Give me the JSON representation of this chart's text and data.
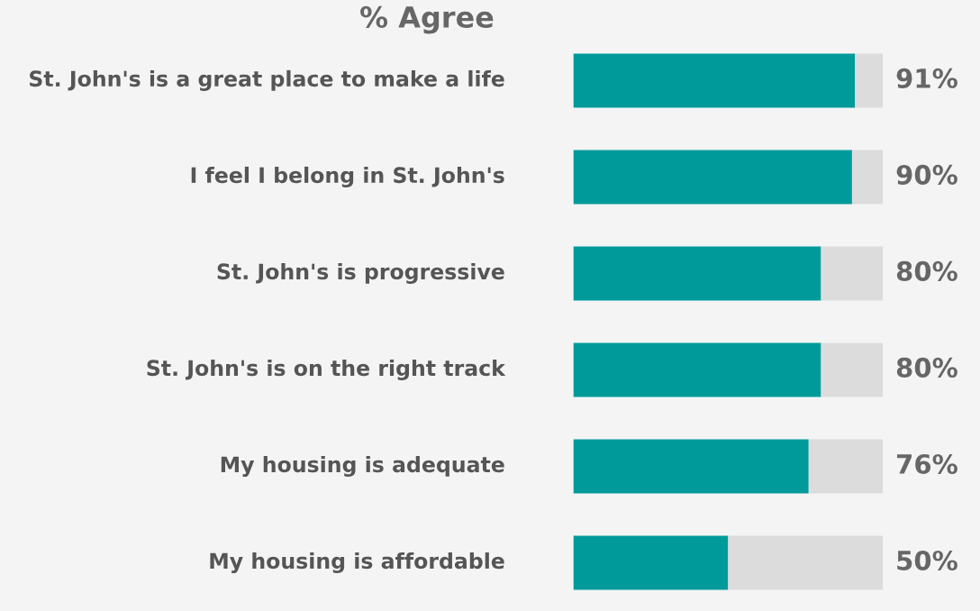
{
  "chart_data": {
    "type": "bar",
    "orientation": "horizontal",
    "stacked": true,
    "title": "% Agree",
    "categories": [
      "St. John's is a great place to make a life",
      "I feel I belong in St. John's",
      "St. John's is progressive",
      "St. John's is on the right track",
      "My housing is adequate",
      "My housing is affordable"
    ],
    "series": [
      {
        "color": "#009a9a",
        "values": [
          91,
          90,
          80,
          80,
          76,
          50
        ],
        "value_labels": [
          "91%",
          "90%",
          "80%",
          "80%",
          "76%",
          "50%"
        ]
      },
      {
        "color": "#dcdcdc",
        "values": [
          9,
          10,
          20,
          20,
          24,
          50
        ]
      }
    ],
    "xlim": [
      0,
      100
    ],
    "tick_labels": false,
    "legend": false
  }
}
